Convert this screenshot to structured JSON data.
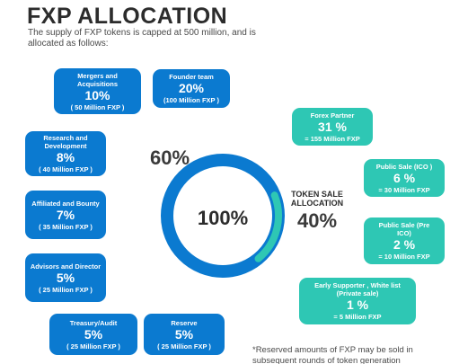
{
  "title": "FXP ALLOCATION",
  "subtitle": "The supply of FXP tokens is capped at 500 million, and is allocated as follows:",
  "colors": {
    "blue": "#0b7ad0",
    "teal": "#2ec7b4"
  },
  "ring": {
    "center_label": "100%",
    "left_label": "60%",
    "right_caption": "TOKEN SALE ALLOCATION",
    "right_label": "40%"
  },
  "items": [
    {
      "name": "Mergers and Acquisitions",
      "pct": "10%",
      "amount": "( 50 Million FXP )"
    },
    {
      "name": "Founder team",
      "pct": "20%",
      "amount": "(100 Million FXP )"
    },
    {
      "name": "Research and Development",
      "pct": "8%",
      "amount": "( 40 Million FXP )"
    },
    {
      "name": "Affiliated and Bounty",
      "pct": "7%",
      "amount": "( 35 Million FXP )"
    },
    {
      "name": "Advisors and Director",
      "pct": "5%",
      "amount": "( 25 Million FXP )"
    },
    {
      "name": "Treasury/Audit",
      "pct": "5%",
      "amount": "( 25 Million FXP )"
    },
    {
      "name": "Reserve",
      "pct": "5%",
      "amount": "( 25 Million FXP )"
    },
    {
      "name": "Forex Partner",
      "pct": "31 %",
      "amount": "= 155 Million FXP"
    },
    {
      "name": "Public Sale (ICO )",
      "pct": "6 %",
      "amount": "= 30 Million FXP"
    },
    {
      "name": "Public Sale (Pre ICO)",
      "pct": "2 %",
      "amount": "= 10 Million FXP"
    },
    {
      "name": "Early Supporter , White list (Private sale)",
      "pct": "1 %",
      "amount": "= 5 Million FXP"
    }
  ],
  "footnote": "*Reserved amounts of FXP may be sold in subsequent rounds of token generation",
  "chart_data": {
    "type": "pie",
    "categories": [
      "60%",
      "40%"
    ],
    "values": [
      60,
      40
    ],
    "title": "FXP ALLOCATION"
  }
}
